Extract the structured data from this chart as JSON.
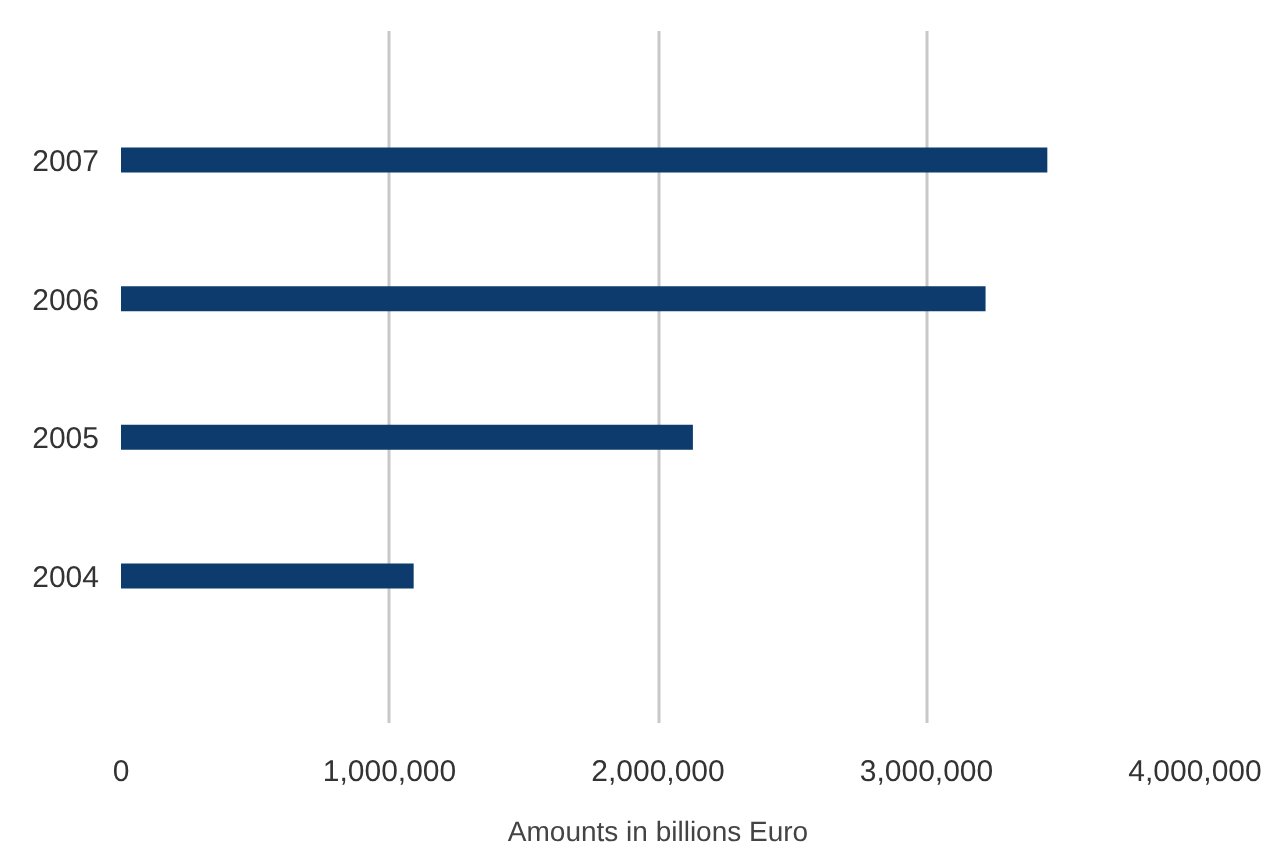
{
  "chart_data": {
    "type": "bar",
    "orientation": "horizontal",
    "xlabel": "Amounts in billions Euro",
    "categories": [
      "2007",
      "2006",
      "2005",
      "2004"
    ],
    "values": [
      3450000,
      3220000,
      2130000,
      1090000
    ],
    "color": "#0d3b6e",
    "xlim": [
      0,
      4000000
    ],
    "xticks": [
      {
        "value": 0,
        "label": "0"
      },
      {
        "value": 1000000,
        "label": "1,000,000"
      },
      {
        "value": 2000000,
        "label": "2,000,000"
      },
      {
        "value": 3000000,
        "label": "3,000,000"
      },
      {
        "value": 4000000,
        "label": "4,000,000"
      }
    ],
    "grid": "x"
  }
}
